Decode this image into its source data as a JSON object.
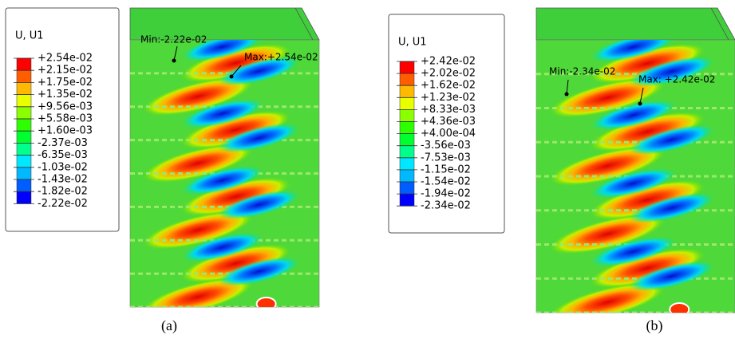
{
  "panels": [
    {
      "caption": "(a)",
      "legend": {
        "title": "U, U1",
        "labels": [
          "+2.54e-02",
          "+2.15e-02",
          "+1.75e-02",
          "+1.35e-02",
          "+9.56e-03",
          "+5.58e-03",
          "+1.60e-03",
          "-2.37e-03",
          "-6.35e-03",
          "-1.03e-02",
          "-1.43e-02",
          "-1.82e-02",
          "-2.22e-02"
        ]
      },
      "min_label": "Min:-2.22e-02",
      "max_label": "Max:+2.54e-02"
    },
    {
      "caption": "(b)",
      "legend": {
        "title": "U, U1",
        "labels": [
          "+2.42e-02",
          "+2.02e-02",
          "+1.62e-02",
          "+1.23e-02",
          "+8.33e-03",
          "+4.36e-03",
          "+4.00e-04",
          "-3.56e-03",
          "-7.53e-03",
          "-1.15e-02",
          "-1.54e-02",
          "-1.94e-02",
          "-2.34e-02"
        ]
      },
      "min_label": "Min:-2.34e-02",
      "max_label": "Max: +2.42e-02"
    }
  ]
}
